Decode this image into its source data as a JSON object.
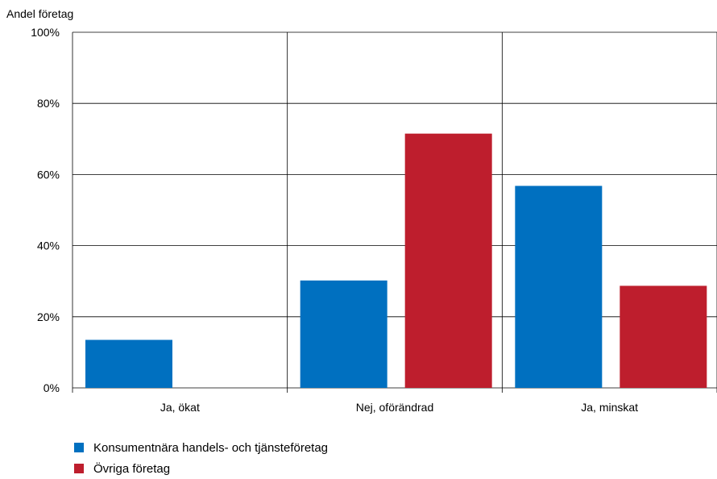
{
  "chart_data": {
    "type": "bar",
    "ylabel": "Andel företag",
    "categories": [
      "Ja, ökat",
      "Nej, oförändrad",
      "Ja, minskat"
    ],
    "series": [
      {
        "name": "Konsumentnära handels- och tjänsteföretag",
        "color": "#0070c0",
        "values": [
          13.5,
          30.2,
          56.8
        ]
      },
      {
        "name": "Övriga företag",
        "color": "#be1e2d",
        "values": [
          0,
          71.5,
          28.7
        ]
      }
    ],
    "ylim": [
      0,
      100
    ],
    "yticks": [
      0,
      20,
      40,
      60,
      80,
      100
    ],
    "ytick_labels": [
      "0%",
      "20%",
      "40%",
      "60%",
      "80%",
      "100%"
    ],
    "grid": true,
    "legend_position": "bottom-left"
  }
}
